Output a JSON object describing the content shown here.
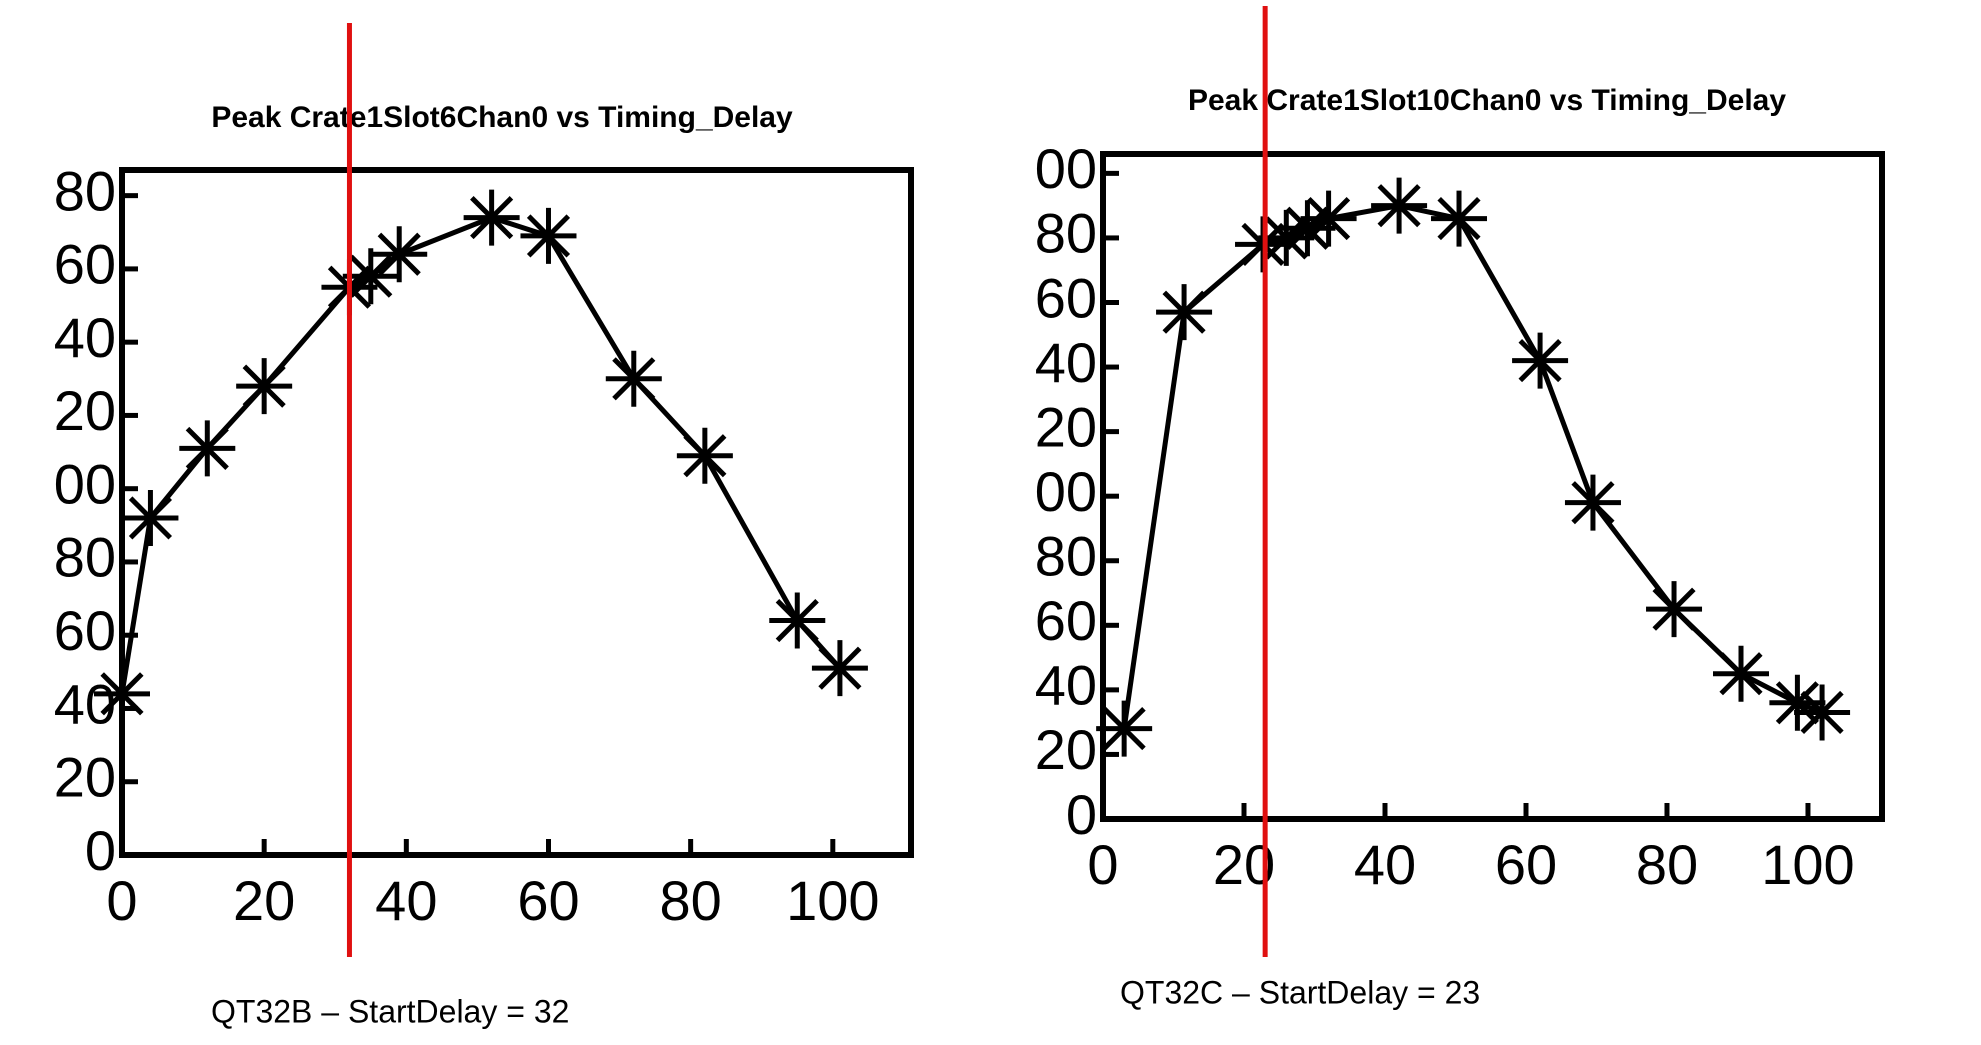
{
  "chart_data": [
    {
      "type": "line",
      "title": "Peak Crate1Slot6Chan0 vs Timing_Delay",
      "caption": "QT32B – StartDelay = 32",
      "x": [
        0,
        4,
        12,
        20,
        32,
        35,
        39,
        52,
        60,
        72,
        82,
        95,
        101
      ],
      "values": [
        44,
        92,
        111,
        128,
        155,
        158,
        164,
        174,
        169,
        130,
        109,
        64,
        51
      ],
      "color": "#000000",
      "marker": "asterisk",
      "xlim": [
        0,
        111
      ],
      "ylim": [
        0,
        187
      ],
      "xticks": [
        0,
        20,
        40,
        60,
        80,
        100
      ],
      "yticks": [
        0,
        20,
        40,
        60,
        80,
        {
          "value": 100,
          "label": "00"
        },
        {
          "value": 120,
          "label": "20"
        },
        {
          "value": 140,
          "label": "40"
        },
        {
          "value": 160,
          "label": "60"
        },
        {
          "value": 180,
          "label": "80"
        }
      ],
      "vline": {
        "x": 32,
        "color": "#e01010"
      }
    },
    {
      "type": "line",
      "title": "Peak Crate1Slot10Chan0 vs Timing_Delay",
      "caption": "QT32C – StartDelay = 23",
      "x": [
        3,
        11.5,
        22.7,
        26,
        29,
        32,
        42,
        50.5,
        62,
        69.5,
        81,
        90.5,
        98.5,
        102
      ],
      "values": [
        28,
        157,
        178,
        180,
        183,
        186,
        190,
        186,
        142,
        98,
        65,
        45,
        36,
        33
      ],
      "color": "#000000",
      "marker": "asterisk",
      "xlim": [
        0,
        110.5
      ],
      "ylim": [
        0,
        206
      ],
      "xticks": [
        0,
        20,
        40,
        60,
        80,
        100
      ],
      "yticks": [
        0,
        20,
        40,
        60,
        80,
        {
          "value": 100,
          "label": "00"
        },
        {
          "value": 120,
          "label": "20"
        },
        {
          "value": 140,
          "label": "40"
        },
        {
          "value": 160,
          "label": "60"
        },
        {
          "value": 180,
          "label": "80"
        },
        {
          "value": 200,
          "label": "00"
        }
      ],
      "vline": {
        "x": 23,
        "color": "#e01010"
      }
    }
  ]
}
